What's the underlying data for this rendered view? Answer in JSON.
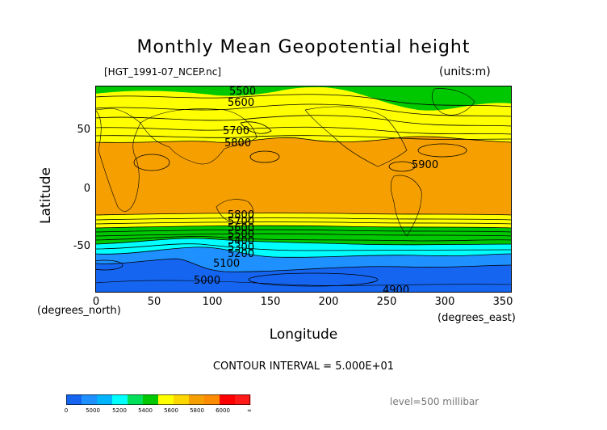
{
  "title": "Monthly Mean Geopotential height",
  "file_label": "[HGT_1991-07_NCEP.nc]",
  "units_label": "(units:m)",
  "y_axis": {
    "label": "Latitude",
    "unit": "(degrees_north)",
    "ticks": [
      "50",
      "0",
      "-50"
    ]
  },
  "x_axis": {
    "label": "Longitude",
    "unit": "(degrees_east)",
    "ticks": [
      "0",
      "50",
      "100",
      "150",
      "200",
      "250",
      "300",
      "350"
    ]
  },
  "contour_interval": "CONTOUR INTERVAL = 5.000E+01",
  "level_label": "level=500 millibar",
  "contour_labels": [
    "5500",
    "5600",
    "5700",
    "5800",
    "5900",
    "5800",
    "5700",
    "5600",
    "5500",
    "5400",
    "5300",
    "5200",
    "5100",
    "5000",
    "4900"
  ],
  "colorbar": {
    "labels": [
      "0",
      "5000",
      "5200",
      "5400",
      "5600",
      "5800",
      "6000",
      "∞"
    ],
    "colors": [
      "#1565f0",
      "#1e90ff",
      "#00b4ff",
      "#00ffff",
      "#00e05a",
      "#00c800",
      "#ffff00",
      "#ffd700",
      "#f5a000",
      "#ff8c00",
      "#ff0000",
      "#ff1a1a"
    ]
  },
  "bands": {
    "colors": {
      "below_5000": "#1565f0",
      "5000_5200": "#1e90ff",
      "5200_5400": "#00ffff",
      "5400_5600": "#00c800",
      "5600_5800": "#ffff00",
      "5800_6000": "#f5a000"
    }
  }
}
